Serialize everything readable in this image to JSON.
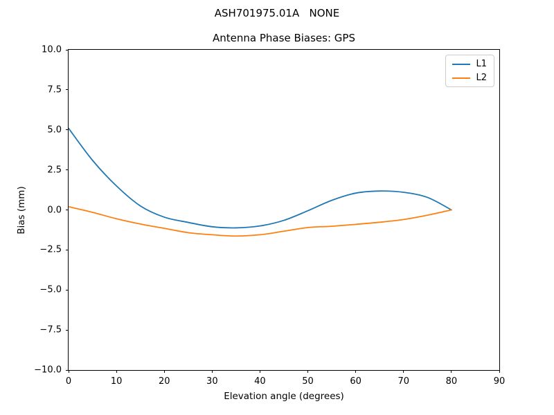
{
  "figure": {
    "suptitle": "ASH701975.01A   NONE",
    "background_color": "#ffffff",
    "spine_color": "#000000"
  },
  "chart_data": {
    "type": "line",
    "title": "Antenna Phase Biases: GPS",
    "xlabel": "Elevation angle (degrees)",
    "ylabel": "Bias (mm)",
    "xlim": [
      0,
      90
    ],
    "ylim": [
      -10,
      10
    ],
    "grid": false,
    "legend_position": "upper right",
    "x_ticks": [
      {
        "label": "0",
        "value": 0
      },
      {
        "label": "10",
        "value": 10
      },
      {
        "label": "20",
        "value": 20
      },
      {
        "label": "30",
        "value": 30
      },
      {
        "label": "40",
        "value": 40
      },
      {
        "label": "50",
        "value": 50
      },
      {
        "label": "60",
        "value": 60
      },
      {
        "label": "70",
        "value": 70
      },
      {
        "label": "80",
        "value": 80
      },
      {
        "label": "90",
        "value": 90
      }
    ],
    "y_ticks": [
      {
        "label": "10.0",
        "value": 10
      },
      {
        "label": "7.5",
        "value": 7.5
      },
      {
        "label": "5.0",
        "value": 5
      },
      {
        "label": "2.5",
        "value": 2.5
      },
      {
        "label": "0.0",
        "value": 0
      },
      {
        "label": "−2.5",
        "value": -2.5
      },
      {
        "label": "−5.0",
        "value": -5
      },
      {
        "label": "−7.5",
        "value": -7.5
      },
      {
        "label": "−10.0",
        "value": -10
      }
    ],
    "x": [
      0,
      5,
      10,
      15,
      20,
      25,
      30,
      35,
      40,
      45,
      50,
      55,
      60,
      65,
      70,
      75,
      80
    ],
    "series": [
      {
        "name": "L1",
        "color": "#1f77b4",
        "values": [
          5.1,
          3.1,
          1.5,
          0.25,
          -0.45,
          -0.78,
          -1.05,
          -1.12,
          -1.0,
          -0.65,
          -0.05,
          0.6,
          1.05,
          1.18,
          1.1,
          0.78,
          0.0
        ]
      },
      {
        "name": "L2",
        "color": "#ff7f0e",
        "values": [
          0.2,
          -0.15,
          -0.55,
          -0.88,
          -1.15,
          -1.42,
          -1.55,
          -1.63,
          -1.55,
          -1.33,
          -1.1,
          -1.02,
          -0.9,
          -0.77,
          -0.6,
          -0.33,
          0.0
        ]
      }
    ]
  },
  "legend": {
    "entries": [
      {
        "label": "L1",
        "color": "#1f77b4"
      },
      {
        "label": "L2",
        "color": "#ff7f0e"
      }
    ]
  }
}
